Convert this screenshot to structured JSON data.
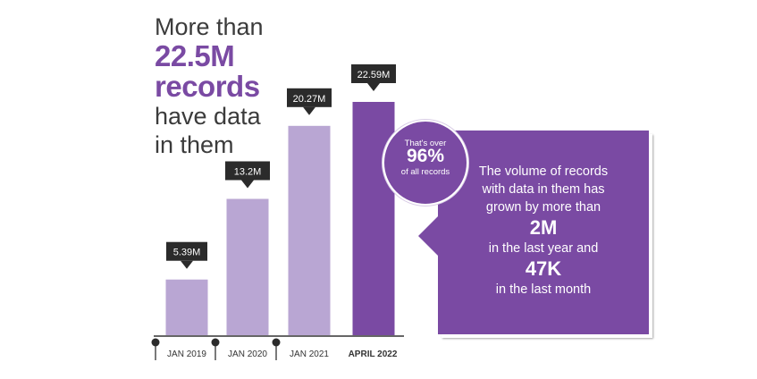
{
  "headline": {
    "line1": "More than",
    "line2": "22.5M",
    "line3": "records",
    "line4": "have data",
    "line5": "in them"
  },
  "chart_data": {
    "type": "bar",
    "categories": [
      "JAN 2019",
      "JAN 2020",
      "JAN 2021",
      "APRIL 2022"
    ],
    "values": [
      5.39,
      13.2,
      20.27,
      22.59
    ],
    "value_labels": [
      "5.39M",
      "13.2M",
      "20.27M",
      "22.59M"
    ],
    "ylim": [
      0,
      22.59
    ],
    "grid": false,
    "colors": {
      "past": "#b9a6d3",
      "current": "#7a4aa3",
      "label_box": "#2b2b2b",
      "axis": "#333333"
    }
  },
  "badge": {
    "top": "That's over",
    "value": "96%",
    "bottom": "of all records"
  },
  "callout": {
    "line1": "The volume of records",
    "line2": "with data in them has",
    "line3": "grown by more than",
    "value1": "2M",
    "line4": "in the last year and",
    "value2": "47K",
    "line5": "in the last month"
  }
}
